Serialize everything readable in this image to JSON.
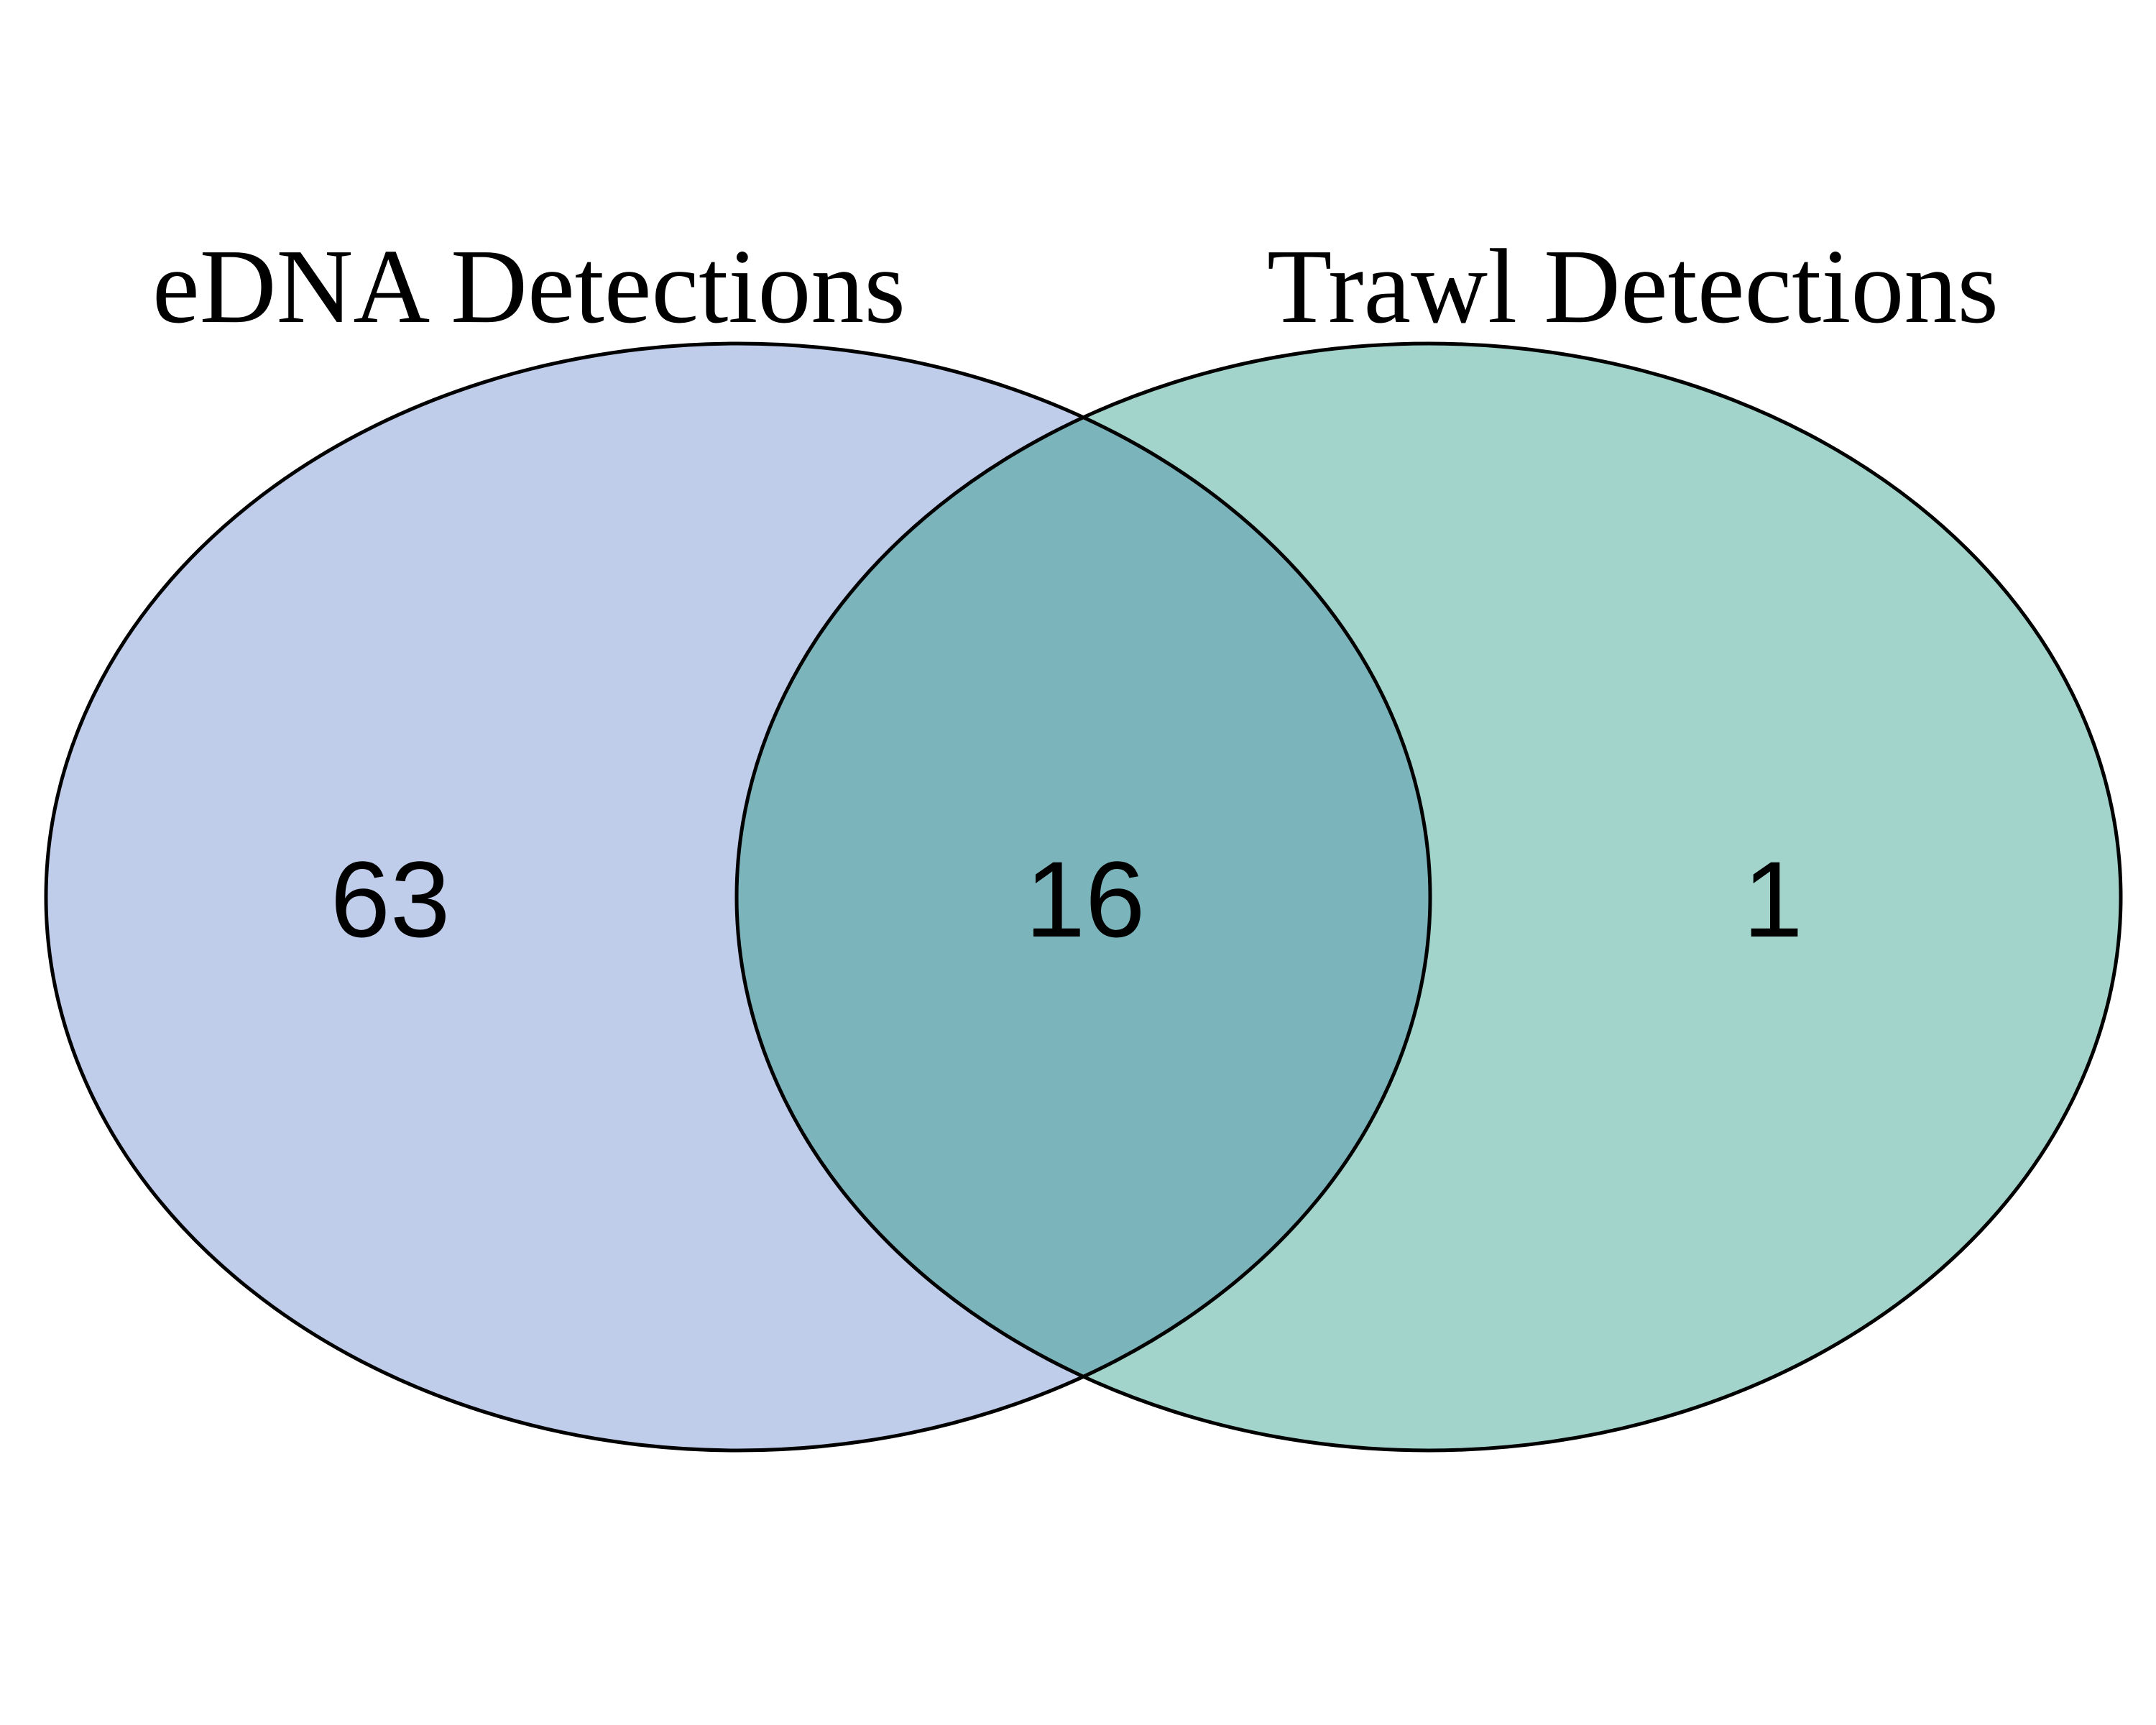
{
  "diagram": {
    "type": "venn",
    "sets": [
      {
        "name": "eDNA Detections",
        "color": "#bfcdea"
      },
      {
        "name": "Trawl Detections",
        "color": "#a2d4cc"
      }
    ],
    "intersection_color": "#7bb4bb",
    "outline_color": "#000000",
    "counts": {
      "only_a": "63",
      "both": "16",
      "only_b": "1"
    }
  }
}
